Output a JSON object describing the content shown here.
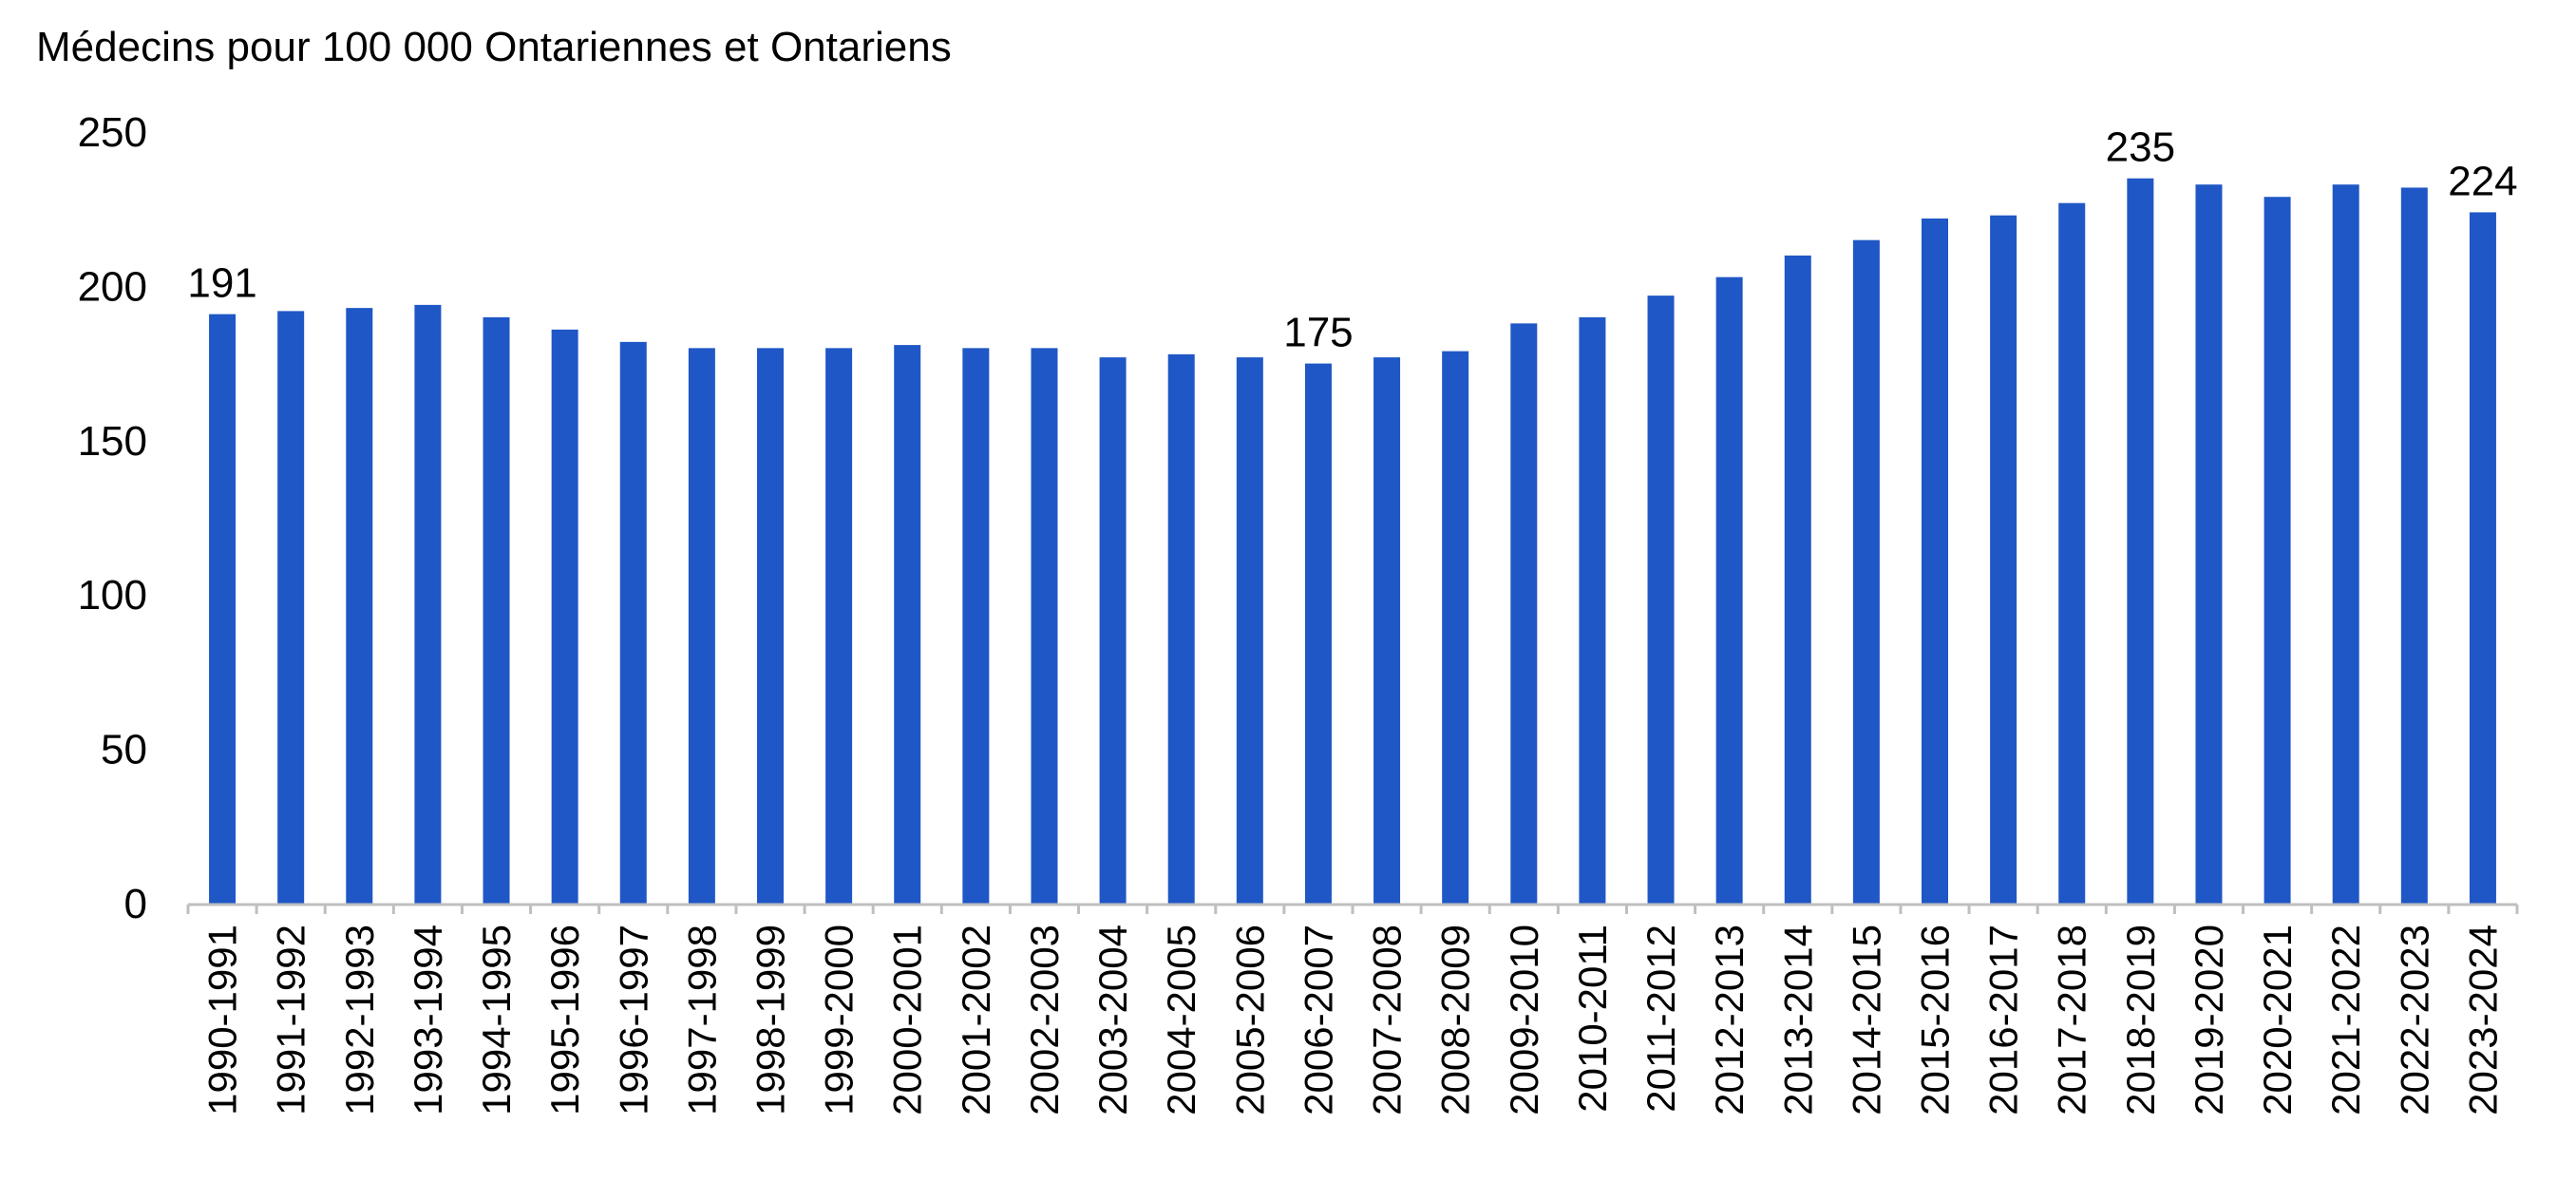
{
  "chart_data": {
    "type": "bar",
    "title": "Médecins pour 100 000 Ontariennes et Ontariens",
    "xlabel": "",
    "ylabel": "",
    "ylim": [
      0,
      250
    ],
    "yticks": [
      0,
      50,
      100,
      150,
      200,
      250
    ],
    "grid": false,
    "legend": "none",
    "bar_color": "#1F57C6",
    "categories": [
      "1990-1991",
      "1991-1992",
      "1992-1993",
      "1993-1994",
      "1994-1995",
      "1995-1996",
      "1996-1997",
      "1997-1998",
      "1998-1999",
      "1999-2000",
      "2000-2001",
      "2001-2002",
      "2002-2003",
      "2003-2004",
      "2004-2005",
      "2005-2006",
      "2006-2007",
      "2007-2008",
      "2008-2009",
      "2009-2010",
      "2010-2011",
      "2011-2012",
      "2012-2013",
      "2013-2014",
      "2014-2015",
      "2015-2016",
      "2016-2017",
      "2017-2018",
      "2018-2019",
      "2019-2020",
      "2020-2021",
      "2021-2022",
      "2022-2023",
      "2023-2024"
    ],
    "values": [
      191,
      192,
      193,
      194,
      190,
      186,
      182,
      180,
      180,
      180,
      181,
      180,
      180,
      177,
      178,
      177,
      175,
      177,
      179,
      188,
      190,
      197,
      203,
      210,
      215,
      222,
      223,
      227,
      235,
      233,
      229,
      233,
      232,
      224
    ],
    "data_labels": [
      {
        "category": "1990-1991",
        "text": "191"
      },
      {
        "category": "2006-2007",
        "text": "175"
      },
      {
        "category": "2018-2019",
        "text": "235"
      },
      {
        "category": "2023-2024",
        "text": "224"
      }
    ]
  }
}
